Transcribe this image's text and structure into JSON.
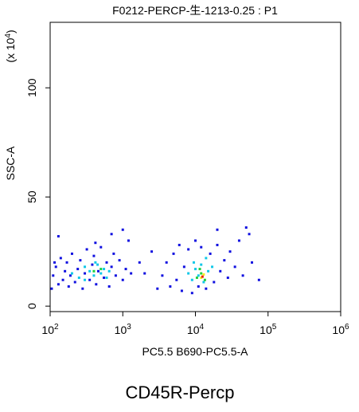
{
  "chart_data": {
    "type": "scatter",
    "title": "F0212-PERCP-生-1213-0.25 : P1",
    "x_label": "PC5.5 B690-PC5.5-A",
    "y_label": "SSC-A",
    "y_multiplier": {
      "prefix": "(x 10",
      "exponent": "4",
      "suffix": ")"
    },
    "caption": "CD45R-Percp",
    "x_scale": "log",
    "xlim": [
      100,
      1000000
    ],
    "xticks": [
      {
        "value": 100,
        "label": "10",
        "exponent": "2"
      },
      {
        "value": 1000,
        "label": "10",
        "exponent": "3"
      },
      {
        "value": 10000,
        "label": "10",
        "exponent": "4"
      },
      {
        "value": 100000,
        "label": "10",
        "exponent": "5"
      },
      {
        "value": 1000000,
        "label": "10",
        "exponent": "6"
      }
    ],
    "ylim": [
      -2.5,
      130
    ],
    "yticks": [
      0,
      50,
      100
    ],
    "series": [
      {
        "color": "#1010e0",
        "x": [
          110,
          120,
          130,
          140,
          150,
          160,
          170,
          180,
          190,
          200,
          220,
          240,
          260,
          280,
          300,
          320,
          350,
          380,
          400,
          430,
          460,
          500,
          550,
          600,
          650,
          700,
          750,
          800,
          900,
          1000,
          1100,
          1200,
          1300,
          130,
          700,
          1000,
          105,
          115,
          420,
          3500,
          4000,
          4500,
          5000,
          5500,
          6000,
          6500,
          7000,
          8000,
          9000,
          10000,
          11000,
          12000,
          14000,
          16000,
          18000,
          20000,
          22000,
          25000,
          28000,
          30000,
          35000,
          40000,
          45000,
          55000,
          60000,
          2000,
          2500,
          3000,
          1700,
          20000,
          50000,
          75000
        ],
        "values": [
          14,
          18,
          10,
          22,
          12,
          16,
          20,
          9,
          14,
          24,
          11,
          17,
          21,
          8,
          15,
          26,
          12,
          19,
          23,
          10,
          16,
          27,
          13,
          20,
          9,
          18,
          24,
          14,
          21,
          12,
          17,
          30,
          15,
          32,
          33,
          35,
          8,
          20,
          29,
          14,
          20,
          9,
          24,
          12,
          28,
          7,
          18,
          26,
          6,
          30,
          9,
          27,
          8,
          24,
          11,
          28,
          16,
          21,
          13,
          25,
          18,
          30,
          14,
          33,
          20,
          15,
          25,
          8,
          20,
          35,
          36,
          12
        ]
      },
      {
        "color": "#10c8e8",
        "x": [
          200,
          250,
          300,
          350,
          400,
          450,
          500,
          550,
          600,
          650,
          300,
          420,
          8000,
          9000,
          10000,
          11000,
          12000,
          13000,
          15000,
          17000,
          9500,
          14000
        ],
        "values": [
          15,
          13,
          18,
          16,
          14,
          19,
          15,
          17,
          13,
          16,
          12,
          20,
          15,
          12,
          17,
          14,
          19,
          11,
          16,
          18,
          20,
          22
        ]
      },
      {
        "color": "#20d040",
        "x": [
          10500,
          12000,
          13500,
          11500,
          400,
          500
        ],
        "values": [
          13,
          15,
          12,
          17,
          16,
          17
        ]
      },
      {
        "color": "#f0f020",
        "x": [
          12000,
          13000
        ],
        "values": [
          13,
          14.5
        ]
      },
      {
        "color": "#e82010",
        "x": [
          12500
        ],
        "values": [
          13.5
        ]
      }
    ]
  }
}
